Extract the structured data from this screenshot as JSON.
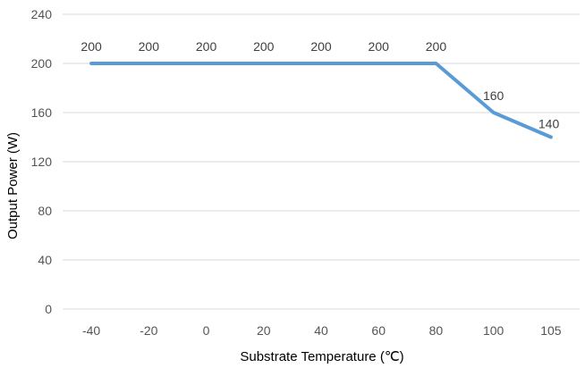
{
  "chart_data": {
    "type": "line",
    "categories": [
      "-40",
      "-20",
      "0",
      "20",
      "40",
      "60",
      "80",
      "100",
      "105"
    ],
    "series": [
      {
        "values": [
          200,
          200,
          200,
          200,
          200,
          200,
          200,
          160,
          140
        ]
      }
    ],
    "data_labels": [
      "200",
      "200",
      "200",
      "200",
      "200",
      "200",
      "200",
      "160",
      "140"
    ],
    "xlabel": "Substrate Temperature (℃)",
    "ylabel": "Output Power (W)",
    "ylim": [
      0,
      240
    ],
    "yticks": [
      0,
      40,
      80,
      120,
      160,
      200,
      240
    ],
    "grid": true,
    "legend": "none",
    "colors": {
      "series": "#5b9bd5",
      "grid": "#d9d9d9"
    }
  }
}
